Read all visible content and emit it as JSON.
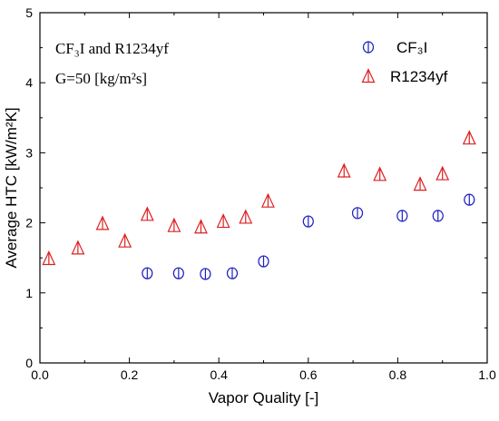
{
  "chart_data": {
    "type": "scatter",
    "xlabel": "Vapor Quality [-]",
    "ylabel": "Average HTC [kW/m²K]",
    "xlim": [
      0,
      1.0
    ],
    "ylim": [
      0,
      5
    ],
    "xticks": [
      "0.0",
      "0.2",
      "0.4",
      "0.6",
      "0.8",
      "1.0"
    ],
    "yticks": [
      "0",
      "1",
      "2",
      "3",
      "4",
      "5"
    ],
    "grid": false,
    "legend": "top-right",
    "annotations": {
      "line1": "CF₃I and R1234yf",
      "line2": "G=50 [kg/m²s]"
    },
    "series": [
      {
        "name": "CF₃I",
        "marker": "circle-bar",
        "color": "#1f1fbf",
        "x": [
          0.24,
          0.31,
          0.37,
          0.43,
          0.5,
          0.6,
          0.71,
          0.81,
          0.89,
          0.96
        ],
        "y": [
          1.28,
          1.28,
          1.27,
          1.28,
          1.45,
          2.02,
          2.14,
          2.1,
          2.1,
          2.33
        ]
      },
      {
        "name": "R1234yf",
        "marker": "triangle-bar",
        "color": "#dd2020",
        "x": [
          0.02,
          0.085,
          0.14,
          0.19,
          0.24,
          0.3,
          0.36,
          0.41,
          0.46,
          0.51,
          0.68,
          0.76,
          0.85,
          0.9,
          0.96
        ],
        "y": [
          1.49,
          1.64,
          1.99,
          1.74,
          2.12,
          1.96,
          1.94,
          2.02,
          2.08,
          2.31,
          2.74,
          2.69,
          2.55,
          2.7,
          3.21
        ]
      }
    ]
  }
}
